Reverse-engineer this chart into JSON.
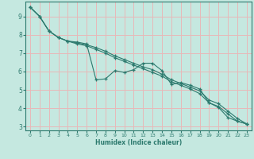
{
  "xlabel": "Humidex (Indice chaleur)",
  "bg_color": "#c5e8e0",
  "grid_color": "#e8b8b8",
  "line_color": "#2d7a6e",
  "spine_color": "#2d7a6e",
  "xlim": [
    -0.5,
    23.5
  ],
  "ylim": [
    2.8,
    9.8
  ],
  "yticks": [
    3,
    4,
    5,
    6,
    7,
    8,
    9
  ],
  "xticks": [
    0,
    1,
    2,
    3,
    4,
    5,
    6,
    7,
    8,
    9,
    10,
    11,
    12,
    13,
    14,
    15,
    16,
    17,
    18,
    19,
    20,
    21,
    22,
    23
  ],
  "line1_x": [
    0,
    1,
    2,
    3,
    4,
    5,
    6,
    7,
    8,
    9,
    10,
    11,
    12,
    13,
    14,
    15,
    16,
    17,
    18,
    19,
    20,
    21,
    22,
    23
  ],
  "line1_y": [
    9.5,
    9.0,
    8.2,
    7.85,
    7.65,
    7.6,
    7.5,
    5.55,
    5.6,
    6.05,
    5.95,
    6.1,
    6.45,
    6.45,
    6.05,
    5.3,
    5.4,
    5.25,
    5.05,
    4.3,
    4.05,
    3.5,
    3.3,
    3.15
  ],
  "line2_x": [
    0,
    1,
    2,
    3,
    4,
    5,
    6,
    7,
    8,
    9,
    10,
    11,
    12,
    13,
    14,
    15,
    16,
    17,
    18,
    19,
    20,
    21,
    22,
    23
  ],
  "line2_y": [
    9.5,
    9.0,
    8.2,
    7.85,
    7.65,
    7.55,
    7.45,
    7.3,
    7.1,
    6.85,
    6.65,
    6.45,
    6.25,
    6.1,
    5.85,
    5.55,
    5.35,
    5.15,
    4.95,
    4.45,
    4.25,
    3.85,
    3.45,
    3.15
  ],
  "line3_x": [
    0,
    1,
    2,
    3,
    4,
    5,
    6,
    7,
    8,
    9,
    10,
    11,
    12,
    13,
    14,
    15,
    16,
    17,
    18,
    19,
    20,
    21,
    22,
    23
  ],
  "line3_y": [
    9.5,
    9.0,
    8.2,
    7.85,
    7.65,
    7.5,
    7.4,
    7.2,
    7.0,
    6.75,
    6.55,
    6.35,
    6.15,
    5.95,
    5.75,
    5.45,
    5.25,
    5.05,
    4.8,
    4.3,
    4.1,
    3.7,
    3.3,
    3.15
  ]
}
